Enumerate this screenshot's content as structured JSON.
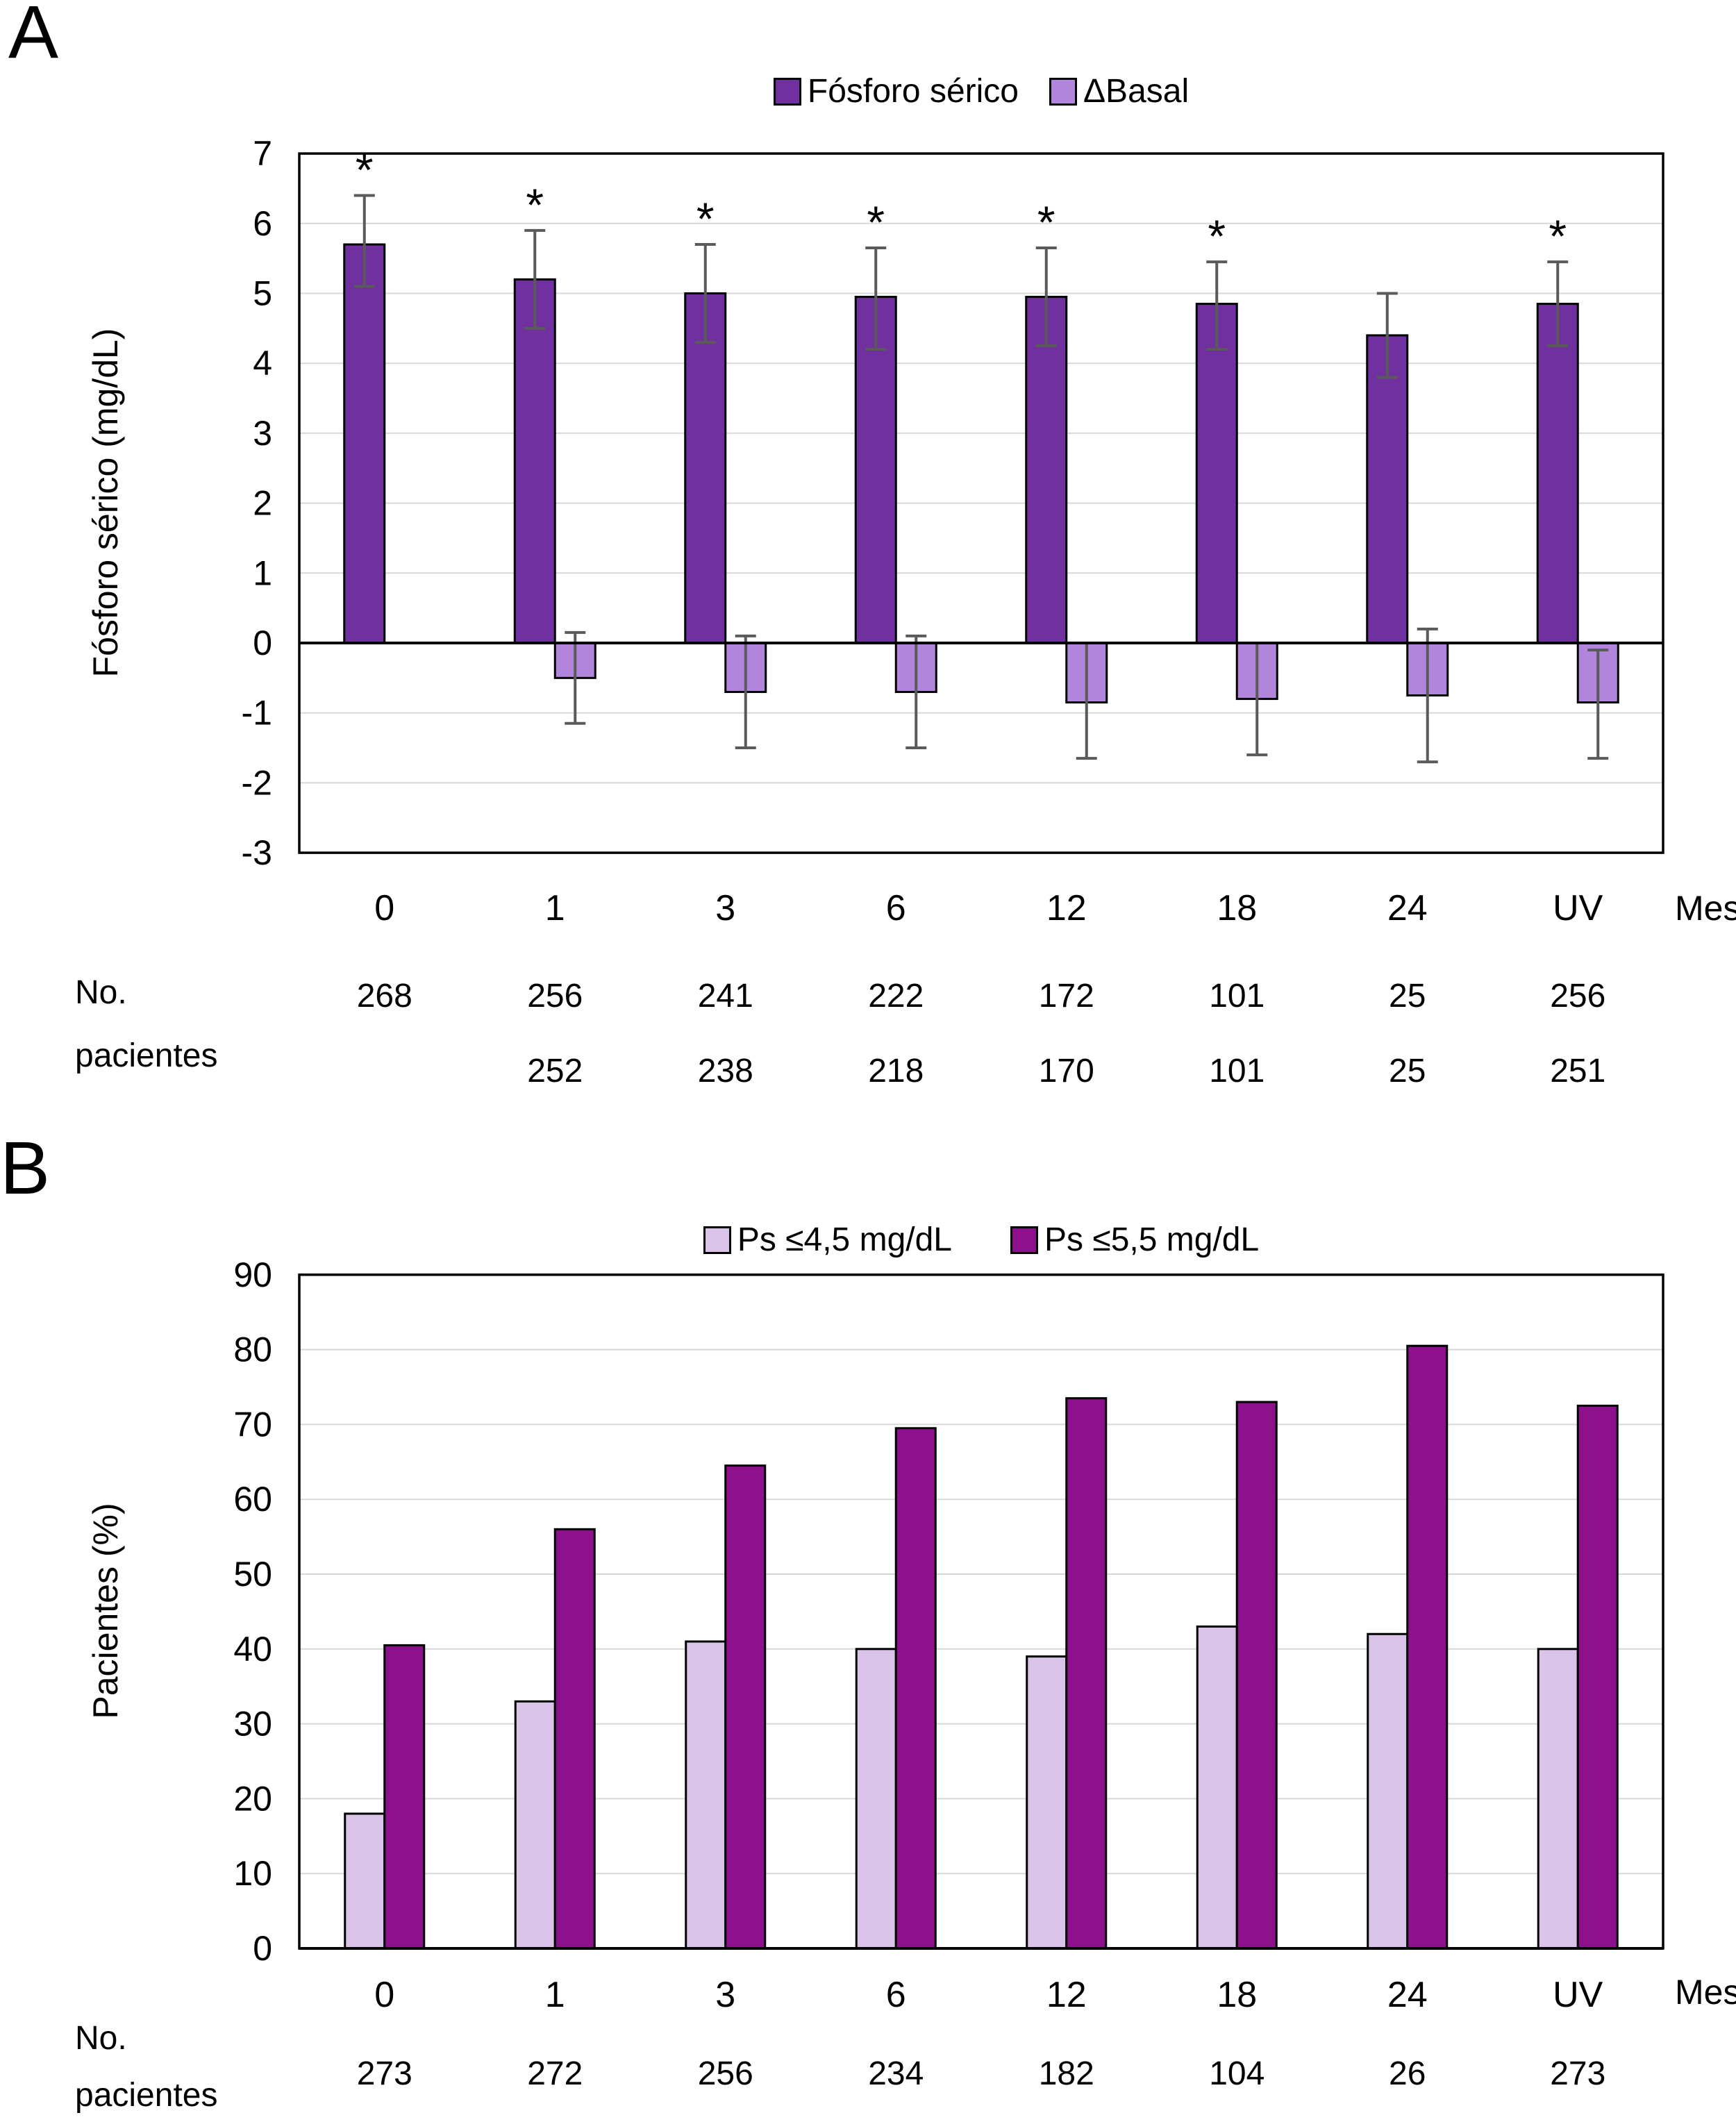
{
  "colors": {
    "serum_purple": "#7030A0",
    "delta_light_purple": "#B285DC",
    "b_light_lavender": "#D9C3E8",
    "b_dark_magenta": "#8D108D",
    "error_bar": "#5A5A5A",
    "gridline": "#D8D8D8",
    "axis": "#000000"
  },
  "chart_data": [
    {
      "type": "bar",
      "panel_label": "A",
      "categories": [
        "0",
        "1",
        "3",
        "6",
        "12",
        "18",
        "24",
        "UV"
      ],
      "xlabel": "Mes",
      "ylabel": "Fósforo sérico (mg/dL)",
      "ylim": [
        -3,
        7
      ],
      "yticks": [
        7,
        6,
        5,
        4,
        3,
        2,
        1,
        0,
        -1,
        -2,
        -3
      ],
      "grid": true,
      "legend_position": "top",
      "series": [
        {
          "name": "Fósforo sérico",
          "color": "#7030A0",
          "values": [
            5.7,
            5.2,
            5.0,
            4.95,
            4.95,
            4.85,
            4.4,
            4.85
          ],
          "err_up": [
            0.7,
            0.7,
            0.7,
            0.7,
            0.7,
            0.6,
            0.6,
            0.6
          ],
          "err_down": [
            0.6,
            0.7,
            0.7,
            0.75,
            0.7,
            0.65,
            0.6,
            0.6
          ],
          "significance": [
            "*",
            "*",
            "*",
            "*",
            "*",
            "*",
            "",
            "*"
          ]
        },
        {
          "name": "ΔBasal",
          "color": "#B285DC",
          "values": [
            null,
            -0.5,
            -0.7,
            -0.7,
            -0.85,
            -0.8,
            -0.75,
            -0.85
          ],
          "err_up": [
            null,
            0.65,
            0.8,
            0.8,
            0.85,
            0.8,
            0.95,
            0.75
          ],
          "err_down": [
            null,
            0.65,
            0.8,
            0.8,
            0.8,
            0.8,
            0.95,
            0.8
          ],
          "significance": [
            "",
            "",
            "",
            "",
            "",
            "",
            "",
            ""
          ]
        }
      ],
      "patients": {
        "label_line1": "No.",
        "label_line2": "pacientes",
        "rows": [
          [
            "268",
            "256",
            "241",
            "222",
            "172",
            "101",
            "25",
            "256"
          ],
          [
            "",
            "252",
            "238",
            "218",
            "170",
            "101",
            "25",
            "251"
          ]
        ]
      }
    },
    {
      "type": "bar",
      "panel_label": "B",
      "categories": [
        "0",
        "1",
        "3",
        "6",
        "12",
        "18",
        "24",
        "UV"
      ],
      "xlabel": "Mes",
      "ylabel": "Pacientes (%)",
      "ylim": [
        0,
        90
      ],
      "yticks": [
        90,
        80,
        70,
        60,
        50,
        40,
        30,
        20,
        10,
        0
      ],
      "grid": true,
      "legend_position": "top",
      "series": [
        {
          "name": "Ps ≤4,5 mg/dL",
          "color": "#D9C3E8",
          "values": [
            18,
            33,
            41,
            40,
            39,
            43,
            42,
            40
          ]
        },
        {
          "name": "Ps ≤5,5 mg/dL",
          "color": "#8D108D",
          "values": [
            40.5,
            56,
            64.5,
            69.5,
            73.5,
            73,
            80.5,
            72.5
          ]
        }
      ],
      "patients": {
        "label_line1": "No.",
        "label_line2": "pacientes",
        "rows": [
          [
            "273",
            "272",
            "256",
            "234",
            "182",
            "104",
            "26",
            "273"
          ]
        ]
      }
    }
  ]
}
